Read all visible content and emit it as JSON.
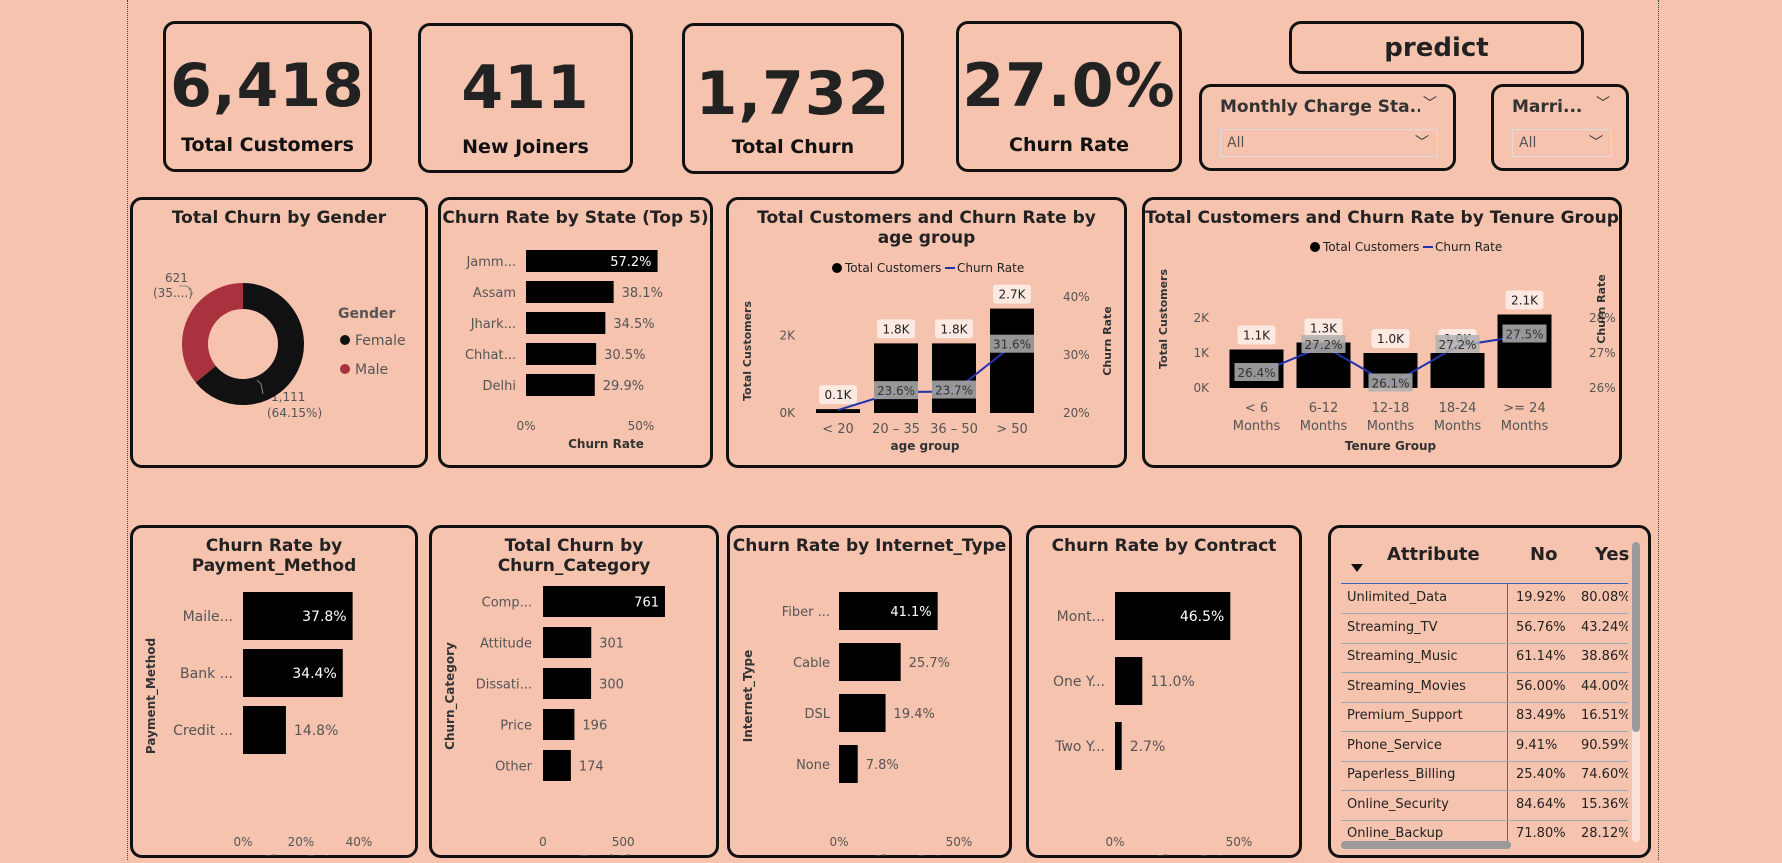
{
  "kpis": [
    {
      "value": "6,418",
      "label": "Total Customers"
    },
    {
      "value": "411",
      "label": "New Joiners"
    },
    {
      "value": "1,732",
      "label": "Total Churn"
    },
    {
      "value": "27.0%",
      "label": "Churn Rate"
    }
  ],
  "predict_button": {
    "label": "predict"
  },
  "slicers": [
    {
      "title": "Monthly Charge Sta...",
      "value": "All"
    },
    {
      "title": "Marri...",
      "value": "All"
    }
  ],
  "gender_chart": {
    "title": "Total Churn by Gender",
    "legend_title": "Gender",
    "legend": [
      {
        "name": "Female",
        "color": "#111111"
      },
      {
        "name": "Male",
        "color": "#A9323E"
      }
    ],
    "labels": {
      "male": "621",
      "male_pct": "(35....)",
      "female": "1,111",
      "female_pct": "(64.15%)"
    }
  },
  "state_chart": {
    "title": "Churn Rate by State (Top 5)",
    "categories": [
      "Jamm...",
      "Assam",
      "Jhark...",
      "Chhat...",
      "Delhi"
    ],
    "labels": [
      "57.2%",
      "38.1%",
      "34.5%",
      "30.5%",
      "29.9%"
    ],
    "axis_ticks": [
      "0%",
      "50%"
    ],
    "xlabel": "Churn Rate"
  },
  "age_chart": {
    "title": "Total Customers and Churn Rate by age group",
    "legend": [
      "Total Customers",
      "Churn Rate"
    ],
    "categories": [
      "< 20",
      "20 – 35",
      "36 – 50",
      "> 50"
    ],
    "bar_labels": [
      "0.1K",
      "1.8K",
      "1.8K",
      "2.7K"
    ],
    "rate_labels": [
      "",
      "23.6%",
      "23.7%",
      "31.6%"
    ],
    "y_ticks": [
      "0K",
      "2K"
    ],
    "y2_ticks": [
      "20%",
      "30%",
      "40%"
    ],
    "xlabel": "age group",
    "ylabel": "Total Customers",
    "y2label": "Churn Rate"
  },
  "tenure_chart": {
    "title": "Total Customers and Churn Rate by Tenure Group",
    "legend": [
      "Total Customers",
      "Churn Rate"
    ],
    "categories": [
      [
        "< 6",
        "Months"
      ],
      [
        "6-12",
        "Months"
      ],
      [
        "12-18",
        "Months"
      ],
      [
        "18-24",
        "Months"
      ],
      [
        ">= 24",
        "Months"
      ]
    ],
    "bar_labels": [
      "1.1K",
      "1.3K",
      "1.0K",
      "1.0K",
      "2.1K"
    ],
    "rate_labels": [
      "26.4%",
      "27.2%",
      "26.1%",
      "27.2%",
      "27.5%"
    ],
    "y_ticks": [
      "0K",
      "1K",
      "2K"
    ],
    "y2_ticks": [
      "26%",
      "27%",
      "28%"
    ],
    "xlabel": "Tenure Group",
    "ylabel": "Total Customers",
    "y2label": "Churn Rate"
  },
  "payment_chart": {
    "title": "Churn Rate by Payment_Method",
    "categories": [
      "Maile...",
      "Bank ...",
      "Credit ..."
    ],
    "labels": [
      "37.8%",
      "34.4%",
      "14.8%"
    ],
    "axis_ticks": [
      "0%",
      "20%",
      "40%"
    ],
    "xlabel": "Churn Rate",
    "ylabel": "Payment_Method"
  },
  "category_chart": {
    "title": "Total Churn by Churn_Category",
    "categories": [
      "Comp...",
      "Attitude",
      "Dissati...",
      "Price",
      "Other"
    ],
    "labels": [
      "761",
      "301",
      "300",
      "196",
      "174"
    ],
    "axis_ticks": [
      "0",
      "500"
    ],
    "xlabel": "Total Churn",
    "ylabel": "Churn_Category"
  },
  "internet_chart": {
    "title": "Churn Rate by Internet_Type",
    "categories": [
      "Fiber ...",
      "Cable",
      "DSL",
      "None"
    ],
    "labels": [
      "41.1%",
      "25.7%",
      "19.4%",
      "7.8%"
    ],
    "axis_ticks": [
      "0%",
      "50%"
    ],
    "xlabel": "Churn Rate",
    "ylabel": "Internet_Type"
  },
  "contract_chart": {
    "title": "Churn Rate by Contract",
    "categories": [
      "Mont...",
      "One Y...",
      "Two Y..."
    ],
    "labels": [
      "46.5%",
      "11.0%",
      "2.7%"
    ],
    "axis_ticks": [
      "0%",
      "50%"
    ],
    "xlabel": "Churn Rate"
  },
  "attribute_table": {
    "headers": [
      "Attribute",
      "No",
      "Yes"
    ],
    "rows": [
      [
        "Unlimited_Data",
        "19.92%",
        "80.08%"
      ],
      [
        "Streaming_TV",
        "56.76%",
        "43.24%"
      ],
      [
        "Streaming_Music",
        "61.14%",
        "38.86%"
      ],
      [
        "Streaming_Movies",
        "56.00%",
        "44.00%"
      ],
      [
        "Premium_Support",
        "83.49%",
        "16.51%"
      ],
      [
        "Phone_Service",
        "9.41%",
        "90.59%"
      ],
      [
        "Paperless_Billing",
        "25.40%",
        "74.60%"
      ],
      [
        "Online_Security",
        "84.64%",
        "15.36%"
      ],
      [
        "Online_Backup",
        "71.80%",
        "28.12%"
      ]
    ]
  },
  "chart_data": [
    {
      "type": "pie",
      "title": "Total Churn by Gender",
      "categories": [
        "Female",
        "Male"
      ],
      "values": [
        1111,
        621
      ],
      "legend": "right"
    },
    {
      "type": "bar",
      "title": "Churn Rate by State (Top 5)",
      "categories": [
        "Jamm...",
        "Assam",
        "Jhark...",
        "Chhat...",
        "Delhi"
      ],
      "values": [
        57.2,
        38.1,
        34.5,
        30.5,
        29.9
      ],
      "xlabel": "Churn Rate",
      "xlim": [
        0,
        60
      ]
    },
    {
      "type": "bar",
      "title": "Total Customers and Churn Rate by age group",
      "categories": [
        "< 20",
        "20 – 35",
        "36 – 50",
        "> 50"
      ],
      "series": [
        {
          "name": "Total Customers",
          "values": [
            100,
            1800,
            1800,
            2700
          ]
        },
        {
          "name": "Churn Rate",
          "values": [
            20.5,
            23.6,
            23.7,
            31.6
          ]
        }
      ],
      "xlabel": "age group",
      "ylabel": "Total Customers",
      "y2label": "Churn Rate",
      "ylim": [
        0,
        3000
      ],
      "y2lim": [
        20,
        40
      ]
    },
    {
      "type": "bar",
      "title": "Total Customers and Churn Rate by Tenure Group",
      "categories": [
        "< 6 Months",
        "6-12 Months",
        "12-18 Months",
        "18-24 Months",
        ">= 24 Months"
      ],
      "series": [
        {
          "name": "Total Customers",
          "values": [
            1100,
            1300,
            1000,
            1000,
            2100
          ]
        },
        {
          "name": "Churn Rate",
          "values": [
            26.4,
            27.2,
            26.1,
            27.2,
            27.5
          ]
        }
      ],
      "xlabel": "Tenure Group",
      "ylabel": "Total Customers",
      "y2label": "Churn Rate",
      "ylim": [
        0,
        2000
      ],
      "y2lim": [
        26,
        28
      ]
    },
    {
      "type": "bar",
      "title": "Churn Rate by Payment_Method",
      "categories": [
        "Maile...",
        "Bank ...",
        "Credit ..."
      ],
      "values": [
        37.8,
        34.4,
        14.8
      ],
      "xlabel": "Churn Rate",
      "ylabel": "Payment_Method",
      "xlim": [
        0,
        40
      ]
    },
    {
      "type": "bar",
      "title": "Total Churn by Churn_Category",
      "categories": [
        "Comp...",
        "Attitude",
        "Dissati...",
        "Price",
        "Other"
      ],
      "values": [
        761,
        301,
        300,
        196,
        174
      ],
      "xlabel": "Total Churn",
      "ylabel": "Churn_Category",
      "xlim": [
        0,
        761
      ]
    },
    {
      "type": "bar",
      "title": "Churn Rate by Internet_Type",
      "categories": [
        "Fiber ...",
        "Cable",
        "DSL",
        "None"
      ],
      "values": [
        41.1,
        25.7,
        19.4,
        7.8
      ],
      "xlabel": "Churn Rate",
      "ylabel": "Internet_Type",
      "xlim": [
        0,
        50
      ]
    },
    {
      "type": "bar",
      "title": "Churn Rate by Contract",
      "categories": [
        "Mont...",
        "One Y...",
        "Two Y..."
      ],
      "values": [
        46.5,
        11.0,
        2.7
      ],
      "xlabel": "Churn Rate",
      "xlim": [
        0,
        50
      ]
    }
  ]
}
